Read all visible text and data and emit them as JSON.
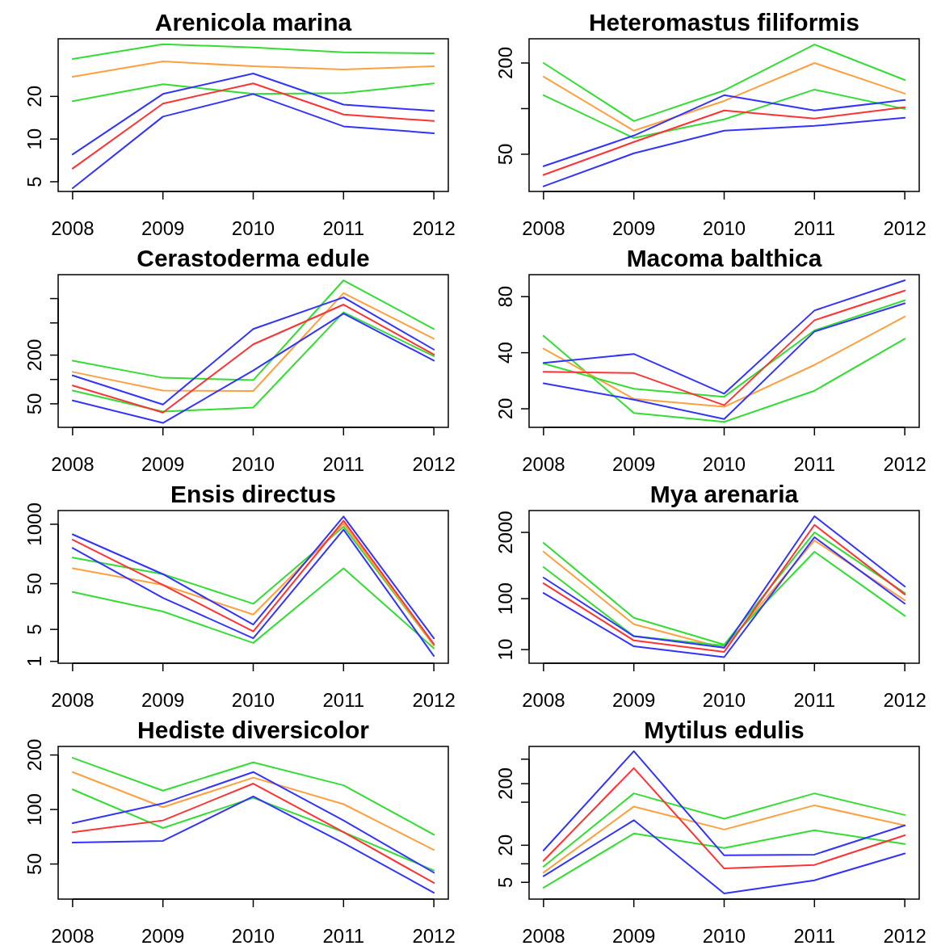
{
  "chart_data": [
    {
      "type": "line",
      "title": "Arenicola marina",
      "categories": [
        "2008",
        "2009",
        "2010",
        "2011",
        "2012"
      ],
      "log": true,
      "ylim": [
        4.27,
        51
      ],
      "yticks": [
        5,
        10,
        20
      ],
      "series": [
        {
          "color": "#33dd33",
          "values": [
            36.7,
            46.7,
            44.3,
            40.9,
            40.3
          ]
        },
        {
          "color": "#ffa040",
          "values": [
            27.5,
            35.3,
            32.6,
            31.0,
            32.6
          ]
        },
        {
          "color": "#33dd33",
          "values": [
            18.5,
            24.4,
            20.8,
            21.1,
            24.7
          ]
        },
        {
          "color": "#3333ff",
          "values": [
            7.8,
            20.8,
            29.0,
            17.5,
            15.8
          ]
        },
        {
          "color": "#ff3333",
          "values": [
            6.2,
            17.8,
            24.7,
            14.9,
            13.4
          ]
        },
        {
          "color": "#3333ff",
          "values": [
            4.5,
            14.4,
            20.8,
            12.3,
            11.0
          ]
        }
      ]
    },
    {
      "type": "line",
      "title": "Heteromastus filiformis",
      "categories": [
        "2008",
        "2009",
        "2010",
        "2011",
        "2012"
      ],
      "log": true,
      "ylim": [
        28.4,
        289
      ],
      "yticks": [
        50,
        {
          "value": 100,
          "label": null
        },
        200
      ],
      "series": [
        {
          "color": "#33dd33",
          "values": [
            200,
            82.8,
            131.8,
            265,
            154.6
          ]
        },
        {
          "color": "#ffa040",
          "values": [
            162.4,
            71.5,
            112.4,
            200,
            125.6
          ]
        },
        {
          "color": "#33dd33",
          "values": [
            122.6,
            64,
            85,
            133.5,
            99.5
          ]
        },
        {
          "color": "#3333ff",
          "values": [
            41.7,
            66.4,
            122.6,
            97.2,
            113.9
          ]
        },
        {
          "color": "#ff3333",
          "values": [
            36.5,
            60.2,
            97.2,
            86,
            102
          ]
        },
        {
          "color": "#3333ff",
          "values": [
            30.7,
            50.7,
            71.5,
            76.9,
            87
          ]
        }
      ]
    },
    {
      "type": "line",
      "title": "Cerastoderma edule",
      "categories": [
        "2008",
        "2009",
        "2010",
        "2011",
        "2012"
      ],
      "log": true,
      "ylim": [
        25.6,
        1974
      ],
      "yticks": [
        50,
        {
          "value": 100,
          "label": null
        },
        200,
        {
          "value": 500,
          "label": null
        },
        {
          "value": 1000,
          "label": null
        }
      ],
      "series": [
        {
          "color": "#33dd33",
          "values": [
            171,
            105,
            98,
            1679,
            420
          ]
        },
        {
          "color": "#ffa040",
          "values": [
            124,
            73,
            72,
            1168,
            318
          ]
        },
        {
          "color": "#33dd33",
          "values": [
            73,
            40,
            45,
            676,
            194
          ]
        },
        {
          "color": "#3333ff",
          "values": [
            112,
            49,
            420,
            1035,
            234
          ]
        },
        {
          "color": "#ff3333",
          "values": [
            84,
            39,
            272,
            843,
            203
          ]
        },
        {
          "color": "#3333ff",
          "values": [
            55,
            29,
            129,
            652,
            171
          ]
        }
      ]
    },
    {
      "type": "line",
      "title": "Macoma balthica",
      "categories": [
        "2008",
        "2009",
        "2010",
        "2011",
        "2012"
      ],
      "log": true,
      "ylim": [
        15.9,
        105
      ],
      "yticks": [
        20,
        40,
        80
      ],
      "series": [
        {
          "color": "#33dd33",
          "values": [
            49.3,
            19.0,
            17.0,
            25.0,
            47.5
          ]
        },
        {
          "color": "#ffa040",
          "values": [
            42.1,
            22.6,
            20.5,
            34.4,
            62.6
          ]
        },
        {
          "color": "#33dd33",
          "values": [
            35.0,
            25.6,
            23.2,
            52.7,
            76.5
          ]
        },
        {
          "color": "#3333ff",
          "values": [
            35.3,
            39.4,
            24.1,
            67.4,
            97.9
          ]
        },
        {
          "color": "#ff3333",
          "values": [
            31.6,
            31.1,
            20.9,
            59.8,
            86.2
          ]
        },
        {
          "color": "#3333ff",
          "values": [
            27.4,
            22.4,
            17.6,
            52.0,
            73.6
          ]
        }
      ]
    },
    {
      "type": "line",
      "title": "Ensis directus",
      "categories": [
        "2008",
        "2009",
        "2010",
        "2011",
        "2012"
      ],
      "log": true,
      "ylim": [
        0.91,
        1995
      ],
      "yticks": [
        1,
        5,
        50,
        1000
      ],
      "series": [
        {
          "color": "#33dd33",
          "values": [
            187,
            81,
            18.2,
            887,
            2.24
          ]
        },
        {
          "color": "#ffa040",
          "values": [
            109,
            47,
            10.6,
            1030,
            2.24
          ]
        },
        {
          "color": "#33dd33",
          "values": [
            33,
            12.3,
            2.53,
            109,
            1.93
          ]
        },
        {
          "color": "#3333ff",
          "values": [
            601,
            81,
            6.4,
            1475,
            3.2
          ]
        },
        {
          "color": "#ff3333",
          "values": [
            460,
            47,
            4.5,
            1197,
            2.38
          ]
        },
        {
          "color": "#3333ff",
          "values": [
            303,
            24.5,
            3.2,
            764,
            1.31
          ]
        }
      ]
    },
    {
      "type": "line",
      "title": "Mya arenaria",
      "categories": [
        "2008",
        "2009",
        "2010",
        "2011",
        "2012"
      ],
      "log": true,
      "ylim": [
        5.4,
        5370
      ],
      "yticks": [
        10,
        100,
        2000
      ],
      "series": [
        {
          "color": "#33dd33",
          "values": [
            1245,
            42,
            12.5,
            2003,
            129
          ]
        },
        {
          "color": "#ffa040",
          "values": [
            834,
            31.4,
            10.7,
            1390,
            93
          ]
        },
        {
          "color": "#33dd33",
          "values": [
            416,
            18.3,
            12.0,
            834,
            46
          ]
        },
        {
          "color": "#3333ff",
          "values": [
            259,
            18.3,
            10.9,
            4160,
            173
          ]
        },
        {
          "color": "#ff3333",
          "values": [
            200,
            15.1,
            9.0,
            2812,
            121
          ]
        },
        {
          "color": "#3333ff",
          "values": [
            129,
            11.6,
            7.1,
            1608,
            80
          ]
        }
      ]
    },
    {
      "type": "line",
      "title": "Hediste diversicolor",
      "categories": [
        "2008",
        "2009",
        "2010",
        "2011",
        "2012"
      ],
      "log": true,
      "ylim": [
        32,
        223
      ],
      "yticks": [
        50,
        100,
        200
      ],
      "series": [
        {
          "color": "#33dd33",
          "values": [
            193,
            127,
            182,
            136,
            72.6
          ]
        },
        {
          "color": "#ffa040",
          "values": [
            161,
            103,
            150,
            107,
            59.8
          ]
        },
        {
          "color": "#33dd33",
          "values": [
            129,
            79,
            116,
            75,
            46
          ]
        },
        {
          "color": "#3333ff",
          "values": [
            84,
            108,
            161,
            87,
            44.8
          ]
        },
        {
          "color": "#ff3333",
          "values": [
            74.8,
            87,
            139,
            75,
            39.3
          ]
        },
        {
          "color": "#3333ff",
          "values": [
            65.6,
            67.1,
            118,
            65.2,
            34.7
          ]
        }
      ]
    },
    {
      "type": "line",
      "title": "Mytilus edulis",
      "categories": [
        "2008",
        "2009",
        "2010",
        "2011",
        "2012"
      ],
      "log": true,
      "ylim": [
        2.67,
        805
      ],
      "yticks": [
        5,
        {
          "value": 10,
          "label": null
        },
        20,
        {
          "value": 100,
          "label": null
        },
        200,
        {
          "value": 500,
          "label": null
        }
      ],
      "series": [
        {
          "color": "#33dd33",
          "values": [
            9.0,
            139,
            54,
            139,
            62
          ]
        },
        {
          "color": "#ffa040",
          "values": [
            7.2,
            85,
            36,
            89,
            42
          ]
        },
        {
          "color": "#33dd33",
          "values": [
            4.1,
            31,
            18,
            35,
            21
          ]
        },
        {
          "color": "#3333ff",
          "values": [
            16.5,
            673,
            13.7,
            14.1,
            42
          ]
        },
        {
          "color": "#ff3333",
          "values": [
            11.2,
            358,
            8.4,
            9.6,
            29
          ]
        },
        {
          "color": "#3333ff",
          "values": [
            6.3,
            51,
            3.3,
            5.4,
            14.7
          ]
        }
      ]
    }
  ]
}
